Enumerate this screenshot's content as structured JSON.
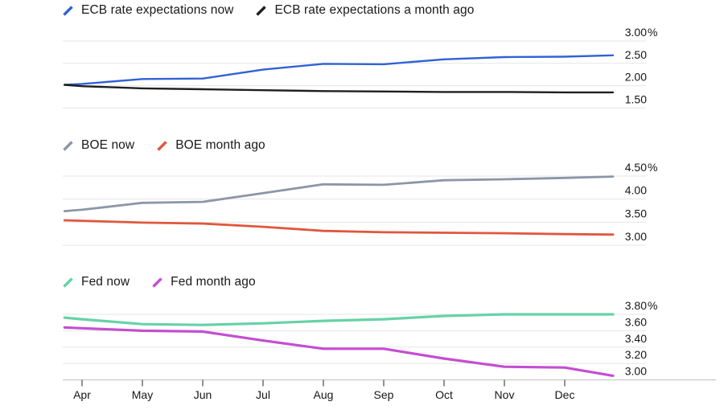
{
  "x_axis": {
    "labels": [
      "Apr",
      "May",
      "Jun",
      "Jul",
      "Aug",
      "Sep",
      "Oct",
      "Nov",
      "Dec"
    ]
  },
  "chart_data": [
    {
      "type": "line",
      "id": "ecb",
      "legend_position": "top-left",
      "x_unit": "months-after-april",
      "x": [
        -0.29,
        0,
        1,
        2,
        3,
        4,
        5,
        6,
        7,
        8,
        8.8
      ],
      "series": [
        {
          "name": "ECB rate expectations now",
          "color": "#3162d4",
          "values": [
            2.02,
            2.04,
            2.15,
            2.16,
            2.36,
            2.49,
            2.48,
            2.59,
            2.64,
            2.65,
            2.68
          ]
        },
        {
          "name": "ECB rate expectations a month ago",
          "color": "#1f1f1f",
          "values": [
            2.02,
            1.99,
            1.94,
            1.92,
            1.9,
            1.88,
            1.87,
            1.86,
            1.86,
            1.85,
            1.85
          ]
        }
      ],
      "yticks": [
        {
          "label": "3.00",
          "suffix": "%",
          "value": 3.0
        },
        {
          "label": "2.50",
          "suffix": "",
          "value": 2.5
        },
        {
          "label": "2.00",
          "suffix": "",
          "value": 2.0
        },
        {
          "label": "1.50",
          "suffix": "",
          "value": 1.5
        }
      ],
      "ylim": [
        1.5,
        3.0
      ],
      "grid": true,
      "show_x_axis": false
    },
    {
      "type": "line",
      "id": "boe",
      "legend_position": "top-left",
      "x_unit": "months-after-april",
      "x": [
        -0.29,
        0,
        1,
        2,
        3,
        4,
        5,
        6,
        7,
        8,
        8.8
      ],
      "series": [
        {
          "name": "BOE now",
          "color": "#8d96a8",
          "values": [
            3.74,
            3.77,
            3.92,
            3.94,
            4.13,
            4.32,
            4.31,
            4.41,
            4.43,
            4.46,
            4.49
          ]
        },
        {
          "name": "BOE month ago",
          "color": "#e0573d",
          "values": [
            3.54,
            3.53,
            3.49,
            3.47,
            3.4,
            3.31,
            3.28,
            3.27,
            3.26,
            3.24,
            3.23
          ]
        }
      ],
      "yticks": [
        {
          "label": "4.50",
          "suffix": "%",
          "value": 4.5
        },
        {
          "label": "4.00",
          "suffix": "",
          "value": 4.0
        },
        {
          "label": "3.50",
          "suffix": "",
          "value": 3.5
        },
        {
          "label": "3.00",
          "suffix": "",
          "value": 3.0
        }
      ],
      "ylim": [
        3.0,
        4.5
      ],
      "grid": true,
      "show_x_axis": false
    },
    {
      "type": "line",
      "id": "fed",
      "legend_position": "top-left",
      "x_unit": "months-after-april",
      "x": [
        -0.29,
        0,
        1,
        2,
        3,
        4,
        5,
        6,
        7,
        8,
        8.8
      ],
      "series": [
        {
          "name": "Fed now",
          "color": "#67d2a6",
          "values": [
            3.76,
            3.74,
            3.68,
            3.67,
            3.69,
            3.72,
            3.74,
            3.78,
            3.8,
            3.8,
            3.8
          ]
        },
        {
          "name": "Fed month ago",
          "color": "#c44ed2",
          "values": [
            3.64,
            3.63,
            3.6,
            3.59,
            3.48,
            3.38,
            3.38,
            3.26,
            3.16,
            3.15,
            3.05
          ]
        }
      ],
      "yticks": [
        {
          "label": "3.80",
          "suffix": "%",
          "value": 3.8
        },
        {
          "label": "3.60",
          "suffix": "",
          "value": 3.6
        },
        {
          "label": "3.40",
          "suffix": "",
          "value": 3.4
        },
        {
          "label": "3.20",
          "suffix": "",
          "value": 3.2
        },
        {
          "label": "3.00",
          "suffix": "",
          "value": 3.0
        }
      ],
      "ylim": [
        3.0,
        3.8
      ],
      "grid": true,
      "show_x_axis": true
    }
  ],
  "style": {
    "background": "#ffffff",
    "gridline_color": "#e5e5e5",
    "axis_line_color": "#c9c9c9",
    "tick_color": "#4a4a4a",
    "label_color": "#161616"
  }
}
